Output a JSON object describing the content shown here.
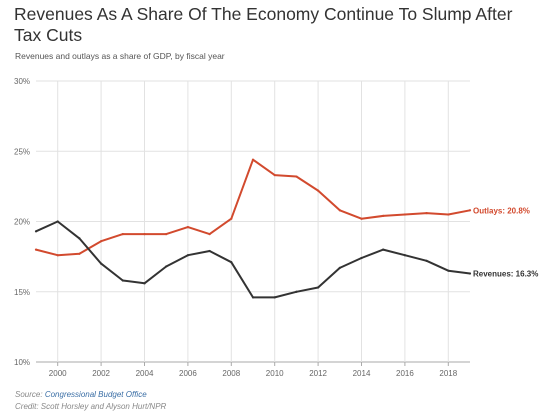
{
  "title": "Revenues As A Share Of The Economy Continue To Slump After Tax Cuts",
  "subtitle": "Revenues and outlays as a share of GDP, by fiscal year",
  "source_label": "Source:",
  "source_link": "Congressional Budget Office",
  "credit": "Credit: Scott Horsley and Alyson Hurt/NPR",
  "chart_data": {
    "type": "line",
    "x": [
      1999,
      2000,
      2001,
      2002,
      2003,
      2004,
      2005,
      2006,
      2007,
      2008,
      2009,
      2010,
      2011,
      2012,
      2013,
      2014,
      2015,
      2016,
      2017,
      2018,
      2019
    ],
    "series": [
      {
        "name": "Outlays",
        "color": "#d24a2e",
        "end_label": "Outlays: 20.8%",
        "values": [
          18.0,
          17.6,
          17.7,
          18.6,
          19.1,
          19.1,
          19.1,
          19.6,
          19.1,
          20.2,
          24.4,
          23.3,
          23.2,
          22.2,
          20.8,
          20.2,
          20.4,
          20.5,
          20.6,
          20.5,
          20.8
        ]
      },
      {
        "name": "Revenues",
        "color": "#333333",
        "end_label": "Revenues: 16.3%",
        "values": [
          19.3,
          20.0,
          18.8,
          17.0,
          15.8,
          15.6,
          16.8,
          17.6,
          17.9,
          17.1,
          14.6,
          14.6,
          15.0,
          15.3,
          16.7,
          17.4,
          18.0,
          17.6,
          17.2,
          16.5,
          16.3
        ]
      }
    ],
    "x_ticks": [
      "2000",
      "2002",
      "2004",
      "2006",
      "2008",
      "2010",
      "2012",
      "2014",
      "2016",
      "2018"
    ],
    "y_ticks": [
      "10%",
      "15%",
      "20%",
      "25%",
      "30%"
    ],
    "ylim": [
      10,
      30
    ],
    "xlim": [
      1999,
      2019
    ],
    "grid": true
  }
}
